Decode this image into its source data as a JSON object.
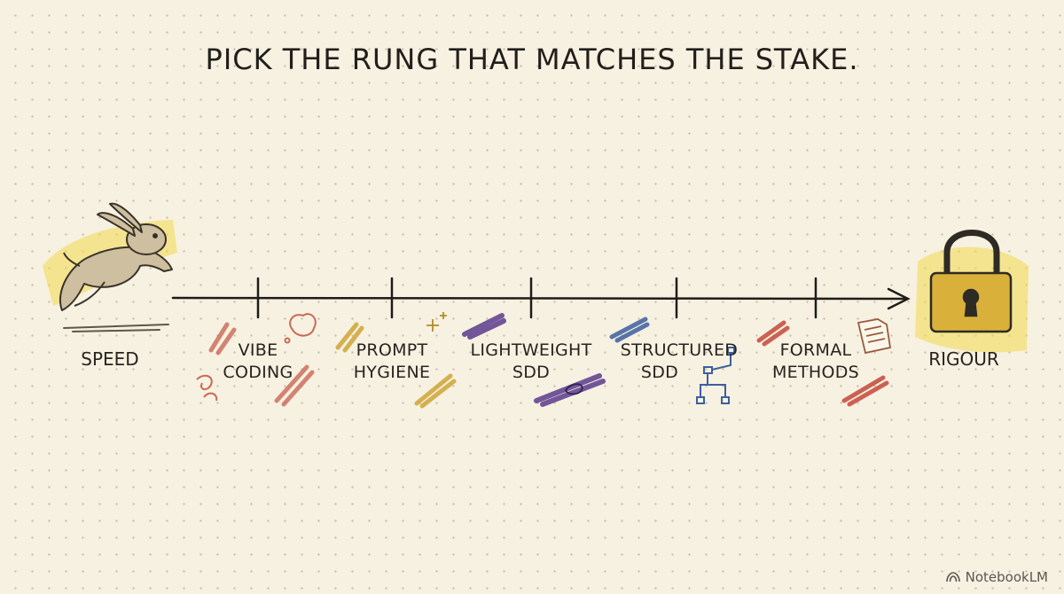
{
  "title": "PICK THE RUNG THAT MATCHES THE STAKE.",
  "ends": {
    "left": {
      "label": "SPEED",
      "icon": "rabbit-icon"
    },
    "right": {
      "label": "RIGOUR",
      "icon": "padlock-icon"
    }
  },
  "rungs": [
    {
      "line1": "VIBE",
      "line2": "CODING",
      "color": "#c96a55"
    },
    {
      "line1": "PROMPT",
      "line2": "HYGIENE",
      "color": "#cfa535"
    },
    {
      "line1": "LIGHTWEIGHT",
      "line2": "SDD",
      "color": "#5b3c8c"
    },
    {
      "line1": "STRUCTURED",
      "line2": "SDD",
      "color": "#3d5f9e"
    },
    {
      "line1": "FORMAL",
      "line2": "METHODS",
      "color": "#c4483b"
    }
  ],
  "watermark": "NotebookLM",
  "colors": {
    "background": "#f7f1e2",
    "axis": "#1f1c18",
    "highlight": "#f2d84a"
  }
}
